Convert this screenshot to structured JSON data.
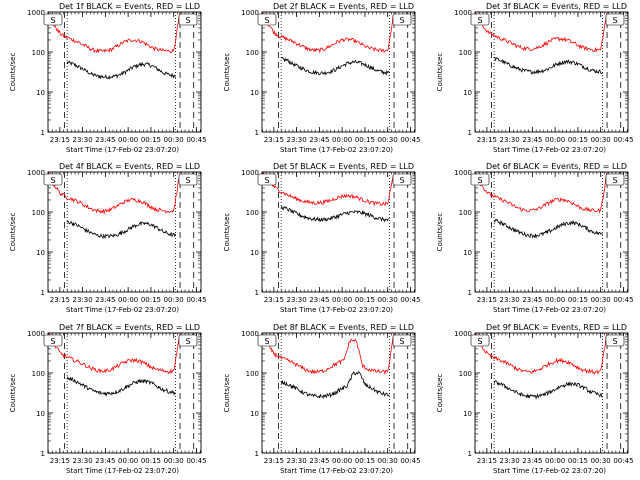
{
  "figure": {
    "background": "#ffffff",
    "axis_color": "#000000",
    "events_color": "#000000",
    "lld_color": "#ff0000"
  },
  "chart_data": [
    {
      "type": "line",
      "title": "Det 1f BLACK = Events, RED = LLD",
      "badge": "S",
      "xlabel": "Start Time (17-Feb-02 23:07:20)",
      "ylabel": "Counts/sec",
      "xlim": [
        23.12,
        24.8
      ],
      "ylim": [
        1,
        1000
      ],
      "yscale": "log",
      "xticks": [
        23.25,
        23.5,
        23.75,
        24.0,
        24.25,
        24.5,
        24.75
      ],
      "xtick_labels": [
        "23:15",
        "23:30",
        "23:45",
        "00:00",
        "00:15",
        "00:30",
        "00:45"
      ],
      "ytick_labels": [
        "1",
        "10",
        "100",
        "1000"
      ],
      "vlines_dashed": [
        23.3,
        24.57,
        24.72
      ],
      "vlines_dotted": [
        23.33,
        24.52
      ],
      "series": [
        {
          "name": "Events",
          "color": "#000000",
          "start": 23.33,
          "end": 24.52,
          "values": [
            55,
            50,
            42,
            35,
            28,
            25,
            24,
            24,
            25,
            28,
            34,
            42,
            48,
            50,
            46,
            38,
            30,
            27,
            25
          ]
        },
        {
          "name": "LLD",
          "color": "#ff0000",
          "start": 23.12,
          "end": 24.57,
          "values": [
            1000,
            450,
            280,
            230,
            200,
            170,
            140,
            115,
            105,
            105,
            115,
            140,
            175,
            200,
            200,
            180,
            145,
            120,
            110,
            105,
            108,
            1000
          ]
        }
      ]
    },
    {
      "type": "line",
      "title": "Det 2f BLACK = Events, RED = LLD",
      "badge": "S",
      "xlabel": "Start Time (17-Feb-02 23:07:20)",
      "ylabel": "Counts/sec",
      "xlim": [
        23.12,
        24.8
      ],
      "ylim": [
        1,
        1000
      ],
      "yscale": "log",
      "xticks": [
        23.25,
        23.5,
        23.75,
        24.0,
        24.25,
        24.5,
        24.75
      ],
      "xtick_labels": [
        "23:15",
        "23:30",
        "23:45",
        "00:00",
        "00:15",
        "00:30",
        "00:45"
      ],
      "ytick_labels": [
        "1",
        "10",
        "100",
        "1000"
      ],
      "vlines_dashed": [
        23.3,
        24.57,
        24.72
      ],
      "vlines_dotted": [
        23.33,
        24.52
      ],
      "series": [
        {
          "name": "Events",
          "color": "#000000",
          "start": 23.33,
          "end": 24.52,
          "values": [
            68,
            62,
            50,
            42,
            36,
            32,
            30,
            30,
            32,
            36,
            44,
            52,
            56,
            54,
            48,
            40,
            34,
            31,
            30
          ]
        },
        {
          "name": "LLD",
          "color": "#ff0000",
          "start": 23.12,
          "end": 24.57,
          "values": [
            1000,
            500,
            300,
            240,
            210,
            180,
            150,
            125,
            112,
            110,
            120,
            145,
            180,
            205,
            205,
            185,
            150,
            125,
            115,
            108,
            110,
            1000
          ]
        }
      ]
    },
    {
      "type": "line",
      "title": "Det 3f BLACK = Events, RED = LLD",
      "badge": "S",
      "xlabel": "Start Time (17-Feb-02 23:07:20)",
      "ylabel": "Counts/sec",
      "xlim": [
        23.12,
        24.8
      ],
      "ylim": [
        1,
        1000
      ],
      "yscale": "log",
      "xticks": [
        23.25,
        23.5,
        23.75,
        24.0,
        24.25,
        24.5,
        24.75
      ],
      "xtick_labels": [
        "23:15",
        "23:30",
        "23:45",
        "00:00",
        "00:15",
        "00:30",
        "00:45"
      ],
      "ytick_labels": [
        "1",
        "10",
        "100",
        "1000"
      ],
      "vlines_dashed": [
        23.3,
        24.57,
        24.72
      ],
      "vlines_dotted": [
        23.33,
        24.52
      ],
      "series": [
        {
          "name": "Events",
          "color": "#000000",
          "start": 23.33,
          "end": 24.52,
          "values": [
            70,
            62,
            52,
            44,
            38,
            34,
            32,
            32,
            34,
            38,
            46,
            54,
            58,
            56,
            50,
            42,
            36,
            33,
            32
          ]
        },
        {
          "name": "LLD",
          "color": "#ff0000",
          "start": 23.12,
          "end": 24.57,
          "values": [
            1000,
            520,
            320,
            260,
            220,
            190,
            160,
            135,
            122,
            120,
            130,
            155,
            190,
            215,
            212,
            190,
            158,
            132,
            120,
            112,
            115,
            1000
          ]
        }
      ]
    },
    {
      "type": "line",
      "title": "Det 4f BLACK = Events, RED = LLD",
      "badge": "S",
      "xlabel": "Start Time (17-Feb-02 23:07:20)",
      "ylabel": "Counts/sec",
      "xlim": [
        23.12,
        24.8
      ],
      "ylim": [
        1,
        1000
      ],
      "yscale": "log",
      "xticks": [
        23.25,
        23.5,
        23.75,
        24.0,
        24.25,
        24.5,
        24.75
      ],
      "xtick_labels": [
        "23:15",
        "23:30",
        "23:45",
        "00:00",
        "00:15",
        "00:30",
        "00:45"
      ],
      "ytick_labels": [
        "1",
        "10",
        "100",
        "1000"
      ],
      "vlines_dashed": [
        23.3,
        24.57,
        24.72
      ],
      "vlines_dotted": [
        23.33,
        24.52
      ],
      "series": [
        {
          "name": "Events",
          "color": "#000000",
          "start": 23.33,
          "end": 24.52,
          "values": [
            58,
            52,
            44,
            36,
            30,
            26,
            25,
            25,
            26,
            30,
            36,
            44,
            50,
            52,
            48,
            40,
            32,
            28,
            26
          ]
        },
        {
          "name": "LLD",
          "color": "#ff0000",
          "start": 23.12,
          "end": 24.57,
          "values": [
            1000,
            460,
            290,
            235,
            205,
            175,
            142,
            118,
            106,
            104,
            116,
            142,
            176,
            202,
            202,
            182,
            146,
            120,
            110,
            106,
            108,
            1000
          ]
        }
      ]
    },
    {
      "type": "line",
      "title": "Det 5f BLACK = Events, RED = LLD",
      "badge": "S",
      "xlabel": "Start Time (17-Feb-02 23:07:20)",
      "ylabel": "Counts/sec",
      "xlim": [
        23.12,
        24.8
      ],
      "ylim": [
        1,
        1000
      ],
      "yscale": "log",
      "xticks": [
        23.25,
        23.5,
        23.75,
        24.0,
        24.25,
        24.5,
        24.75
      ],
      "xtick_labels": [
        "23:15",
        "23:30",
        "23:45",
        "00:00",
        "00:15",
        "00:30",
        "00:45"
      ],
      "ytick_labels": [
        "1",
        "10",
        "100",
        "1000"
      ],
      "vlines_dashed": [
        23.3,
        24.57,
        24.72
      ],
      "vlines_dotted": [
        23.33,
        24.52
      ],
      "series": [
        {
          "name": "Events",
          "color": "#000000",
          "start": 23.33,
          "end": 24.52,
          "values": [
            130,
            120,
            100,
            85,
            75,
            68,
            65,
            65,
            68,
            75,
            85,
            95,
            100,
            98,
            90,
            80,
            70,
            65,
            62
          ]
        },
        {
          "name": "LLD",
          "color": "#ff0000",
          "start": 23.12,
          "end": 24.57,
          "values": [
            1000,
            600,
            420,
            330,
            270,
            230,
            200,
            180,
            170,
            170,
            178,
            200,
            230,
            255,
            255,
            235,
            205,
            180,
            165,
            158,
            160,
            1000
          ]
        }
      ]
    },
    {
      "type": "line",
      "title": "Det 6f BLACK = Events, RED = LLD",
      "badge": "S",
      "xlabel": "Start Time (17-Feb-02 23:07:20)",
      "ylabel": "Counts/sec",
      "xlim": [
        23.12,
        24.8
      ],
      "ylim": [
        1,
        1000
      ],
      "yscale": "log",
      "xticks": [
        23.25,
        23.5,
        23.75,
        24.0,
        24.25,
        24.5,
        24.75
      ],
      "xtick_labels": [
        "23:15",
        "23:30",
        "23:45",
        "00:00",
        "00:15",
        "00:30",
        "00:45"
      ],
      "ytick_labels": [
        "1",
        "10",
        "100",
        "1000"
      ],
      "vlines_dashed": [
        23.3,
        24.57,
        24.72
      ],
      "vlines_dotted": [
        23.33,
        24.52
      ],
      "series": [
        {
          "name": "Events",
          "color": "#000000",
          "start": 23.33,
          "end": 24.52,
          "values": [
            62,
            55,
            46,
            38,
            32,
            28,
            26,
            26,
            28,
            32,
            38,
            46,
            52,
            54,
            50,
            42,
            34,
            30,
            28
          ]
        },
        {
          "name": "LLD",
          "color": "#ff0000",
          "start": 23.12,
          "end": 24.57,
          "values": [
            1000,
            480,
            300,
            245,
            210,
            180,
            148,
            122,
            110,
            108,
            120,
            146,
            180,
            205,
            205,
            185,
            150,
            124,
            114,
            108,
            110,
            1000
          ]
        }
      ]
    },
    {
      "type": "line",
      "title": "Det 7f BLACK = Events, RED = LLD",
      "badge": "S",
      "xlabel": "Start Time (17-Feb-02 23:07:20)",
      "ylabel": "Counts/sec",
      "xlim": [
        23.12,
        24.8
      ],
      "ylim": [
        1,
        1000
      ],
      "yscale": "log",
      "xticks": [
        23.25,
        23.5,
        23.75,
        24.0,
        24.25,
        24.5,
        24.75
      ],
      "xtick_labels": [
        "23:15",
        "23:30",
        "23:45",
        "00:00",
        "00:15",
        "00:30",
        "00:45"
      ],
      "ytick_labels": [
        "1",
        "10",
        "100",
        "1000"
      ],
      "vlines_dashed": [
        23.3,
        24.57,
        24.72
      ],
      "vlines_dotted": [
        23.33,
        24.52
      ],
      "series": [
        {
          "name": "Events",
          "color": "#000000",
          "start": 23.33,
          "end": 24.52,
          "values": [
            75,
            68,
            56,
            46,
            38,
            33,
            31,
            31,
            33,
            38,
            46,
            56,
            62,
            62,
            56,
            46,
            38,
            34,
            32
          ]
        },
        {
          "name": "LLD",
          "color": "#ff0000",
          "start": 23.12,
          "end": 24.57,
          "values": [
            1000,
            500,
            310,
            250,
            215,
            185,
            155,
            128,
            115,
            112,
            122,
            148,
            182,
            208,
            208,
            188,
            152,
            126,
            116,
            110,
            112,
            1000
          ]
        }
      ]
    },
    {
      "type": "line",
      "title": "Det 8f BLACK = Events, RED = LLD",
      "badge": "S",
      "xlabel": "Start Time (17-Feb-02 23:07:20)",
      "ylabel": "Counts/sec",
      "xlim": [
        23.12,
        24.8
      ],
      "ylim": [
        1,
        1000
      ],
      "yscale": "log",
      "xticks": [
        23.25,
        23.5,
        23.75,
        24.0,
        24.25,
        24.5,
        24.75
      ],
      "xtick_labels": [
        "23:15",
        "23:30",
        "23:45",
        "00:00",
        "00:15",
        "00:30",
        "00:45"
      ],
      "ytick_labels": [
        "1",
        "10",
        "100",
        "1000"
      ],
      "vlines_dashed": [
        23.3,
        24.57,
        24.72
      ],
      "vlines_dotted": [
        23.33,
        24.52
      ],
      "series": [
        {
          "name": "Events",
          "color": "#000000",
          "start": 23.33,
          "end": 24.52,
          "values": [
            60,
            54,
            45,
            37,
            31,
            27,
            26,
            26,
            28,
            32,
            40,
            48,
            100,
            100,
            50,
            42,
            34,
            30,
            28
          ]
        },
        {
          "name": "LLD",
          "color": "#ff0000",
          "start": 23.12,
          "end": 24.57,
          "values": [
            1000,
            470,
            295,
            240,
            208,
            178,
            146,
            120,
            108,
            106,
            118,
            145,
            178,
            204,
            650,
            650,
            148,
            122,
            112,
            106,
            108,
            1000
          ]
        }
      ]
    },
    {
      "type": "line",
      "title": "Det 9f BLACK = Events, RED = LLD",
      "badge": "S",
      "xlabel": "Start Time (17-Feb-02 23:07:20)",
      "ylabel": "Counts/sec",
      "xlim": [
        23.12,
        24.8
      ],
      "ylim": [
        1,
        1000
      ],
      "yscale": "log",
      "xticks": [
        23.25,
        23.5,
        23.75,
        24.0,
        24.25,
        24.5,
        24.75
      ],
      "xtick_labels": [
        "23:15",
        "23:30",
        "23:45",
        "00:00",
        "00:15",
        "00:30",
        "00:45"
      ],
      "ytick_labels": [
        "1",
        "10",
        "100",
        "1000"
      ],
      "vlines_dashed": [
        23.3,
        24.57,
        24.72
      ],
      "vlines_dotted": [
        23.33,
        24.52
      ],
      "series": [
        {
          "name": "Events",
          "color": "#000000",
          "start": 23.33,
          "end": 24.52,
          "values": [
            60,
            54,
            45,
            37,
            31,
            27,
            26,
            26,
            28,
            32,
            38,
            46,
            52,
            54,
            50,
            42,
            34,
            30,
            28
          ]
        },
        {
          "name": "LLD",
          "color": "#ff0000",
          "start": 23.12,
          "end": 24.57,
          "values": [
            1000,
            470,
            295,
            240,
            208,
            178,
            146,
            120,
            108,
            106,
            118,
            145,
            178,
            204,
            204,
            184,
            148,
            122,
            112,
            106,
            108,
            1000
          ]
        }
      ]
    }
  ]
}
